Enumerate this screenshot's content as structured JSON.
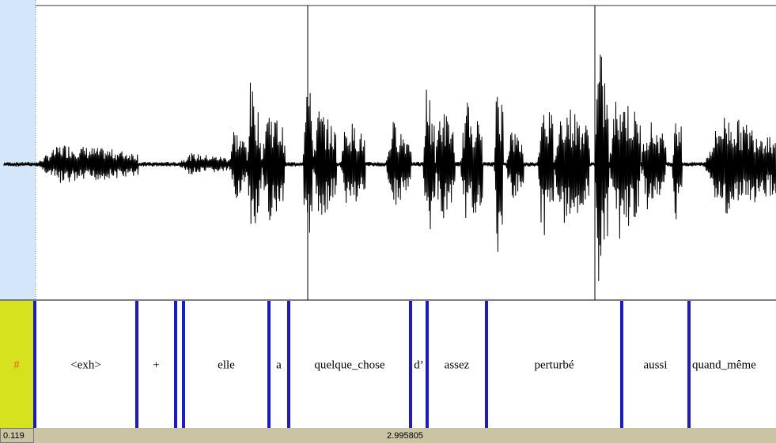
{
  "tier": {
    "label": "#",
    "intervals": [
      "<exh>",
      "+",
      "elle",
      "a",
      "quelque_chose",
      "d’",
      "assez",
      "perturbé",
      "aussi",
      "quand_même"
    ]
  },
  "footer": {
    "start": "0.119",
    "duration": "2.995805"
  }
}
